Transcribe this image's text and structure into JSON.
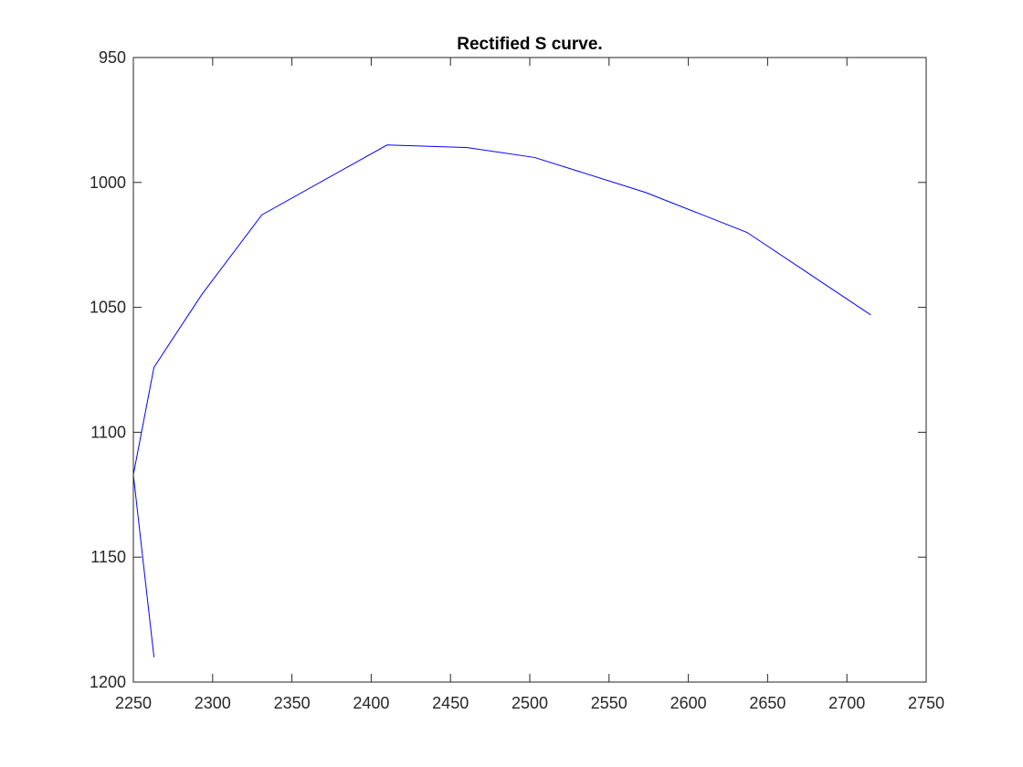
{
  "chart_data": {
    "type": "line",
    "title": "Rectified S curve.",
    "xlabel": "",
    "ylabel": "",
    "xlim": [
      2250,
      2750
    ],
    "ylim": [
      950,
      1200
    ],
    "y_reversed": true,
    "x_ticks": [
      2250,
      2300,
      2350,
      2400,
      2450,
      2500,
      2550,
      2600,
      2650,
      2700,
      2750
    ],
    "y_ticks": [
      950,
      1000,
      1050,
      1100,
      1150,
      1200
    ],
    "grid": false,
    "box": true,
    "series": [
      {
        "color": "#0000ff",
        "points": [
          [
            2263,
            1190
          ],
          [
            2250,
            1117
          ],
          [
            2263,
            1074
          ],
          [
            2293,
            1045
          ],
          [
            2331,
            1013
          ],
          [
            2410,
            985
          ],
          [
            2460,
            986
          ],
          [
            2503,
            990
          ],
          [
            2573,
            1004
          ],
          [
            2637,
            1020
          ],
          [
            2715,
            1053
          ]
        ]
      }
    ]
  }
}
